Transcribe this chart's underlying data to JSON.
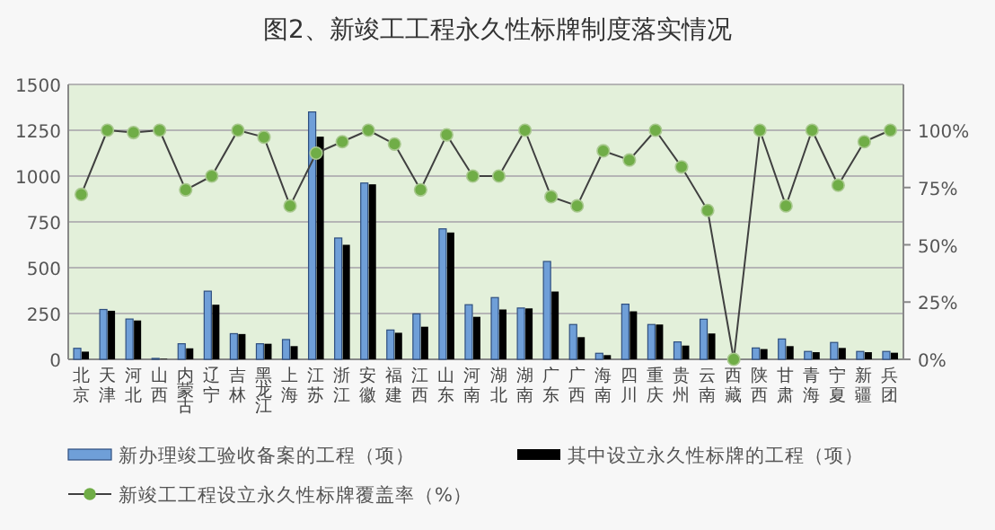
{
  "chart_data": {
    "type": "bar",
    "title": "图2、新竣工工程永久性标牌制度落实情况",
    "categories": [
      "北京",
      "天津",
      "河北",
      "山西",
      "内蒙古",
      "辽宁",
      "吉林",
      "黑龙江",
      "上海",
      "江苏",
      "浙江",
      "安徽",
      "福建",
      "江西",
      "山东",
      "河南",
      "湖北",
      "湖南",
      "广东",
      "广西",
      "海南",
      "四川",
      "重庆",
      "贵州",
      "云南",
      "西藏",
      "陕西",
      "甘肃",
      "青海",
      "宁夏",
      "新疆",
      "兵团"
    ],
    "series": [
      {
        "name": "新办理竣工验收备案的工程（项）",
        "color": "#6f9fd8",
        "values": [
          60,
          272,
          220,
          5,
          85,
          372,
          140,
          85,
          108,
          1350,
          662,
          962,
          160,
          248,
          712,
          298,
          337,
          280,
          534,
          190,
          33,
          301,
          190,
          95,
          219,
          0,
          62,
          111,
          43,
          92,
          43,
          43
        ]
      },
      {
        "name": "其中设立永久性标牌的工程（项）",
        "color": "#000000",
        "values": [
          42,
          265,
          212,
          3,
          60,
          298,
          138,
          85,
          72,
          1215,
          625,
          955,
          145,
          178,
          692,
          232,
          272,
          278,
          370,
          121,
          23,
          262,
          190,
          75,
          141,
          0,
          56,
          72,
          39,
          62,
          39,
          36
        ]
      },
      {
        "name": "新竣工工程设立永久性标牌覆盖率（%）",
        "type": "line",
        "axis": "y2",
        "color": "#404040",
        "marker": "circle",
        "values": [
          72,
          100,
          99,
          100,
          74,
          80,
          100,
          97,
          67,
          90,
          95,
          100,
          94,
          74,
          98,
          80,
          80,
          100,
          71,
          67,
          91,
          87,
          100,
          84,
          65,
          0,
          100,
          67,
          100,
          76,
          95,
          100
        ]
      }
    ],
    "ylim": [
      0,
      1500
    ],
    "yticks": [
      0,
      250,
      500,
      750,
      1000,
      1250,
      1500
    ],
    "y2lim": [
      0,
      120
    ],
    "y2ticks": [
      {
        "value": 0,
        "label": "0%"
      },
      {
        "value": 25,
        "label": "25%"
      },
      {
        "value": 50,
        "label": "50%"
      },
      {
        "value": 75,
        "label": "75%"
      },
      {
        "value": 100,
        "label": "100%"
      }
    ],
    "grid": "y",
    "legend": "bottom"
  }
}
